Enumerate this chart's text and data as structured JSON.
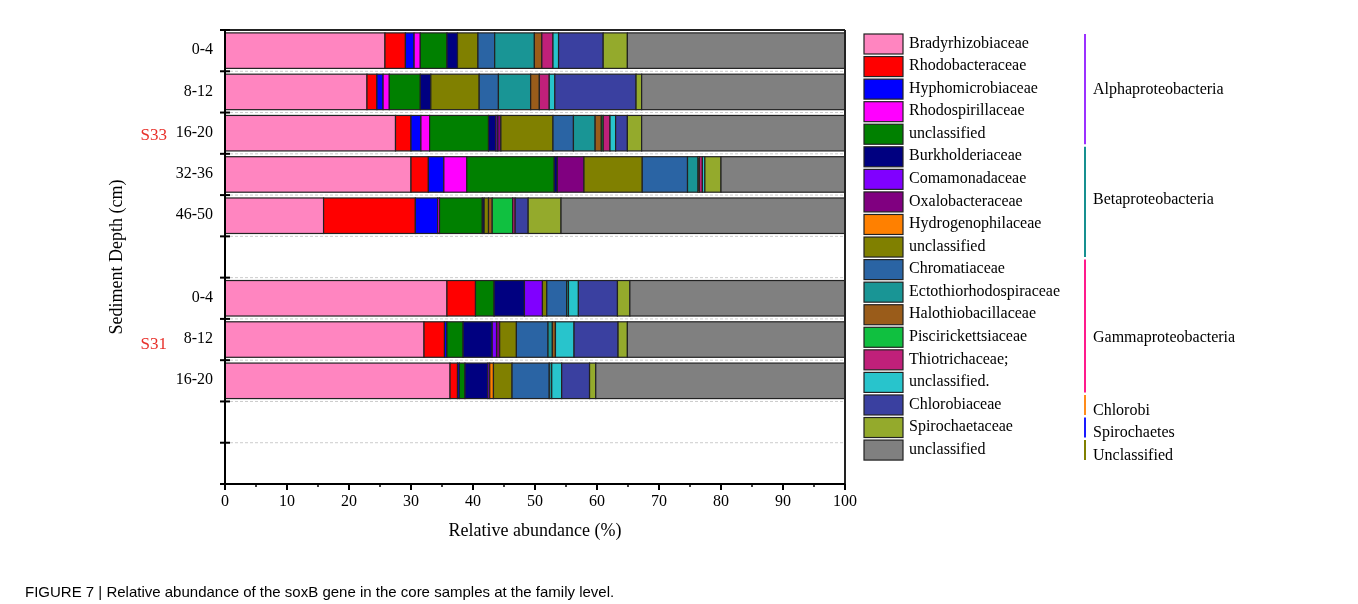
{
  "chart_data": {
    "type": "bar",
    "orientation": "horizontal",
    "stacked": true,
    "xlabel": "Relative abundance (%)",
    "ylabel": "Sediment Depth (cm)",
    "categories": [
      "0-4",
      "8-12",
      "16-20",
      "32-36",
      "46-50",
      null,
      "0-4",
      "8-12",
      "16-20",
      null,
      null
    ],
    "xlim": [
      0,
      100
    ],
    "xticks": [
      0,
      10,
      20,
      30,
      40,
      50,
      60,
      70,
      80,
      90,
      100
    ],
    "grid": "y",
    "legend": "right",
    "annotations": [
      "S33",
      "S31",
      "Alphaproteobacteria",
      "Betaproteobacteria",
      "Gammaproteobacteria",
      "Chlorobi",
      "Spirochaetes",
      "Unclassified",
      "FIGURE 7 | Relative abundance of the soxB gene in the core samples at the family level."
    ],
    "series": [
      {
        "name": "Bradyrhizobiaceae",
        "color": "#ff85c0",
        "values": [
          25.8,
          22.9,
          27.5,
          30.0,
          15.9,
          null,
          35.8,
          32.1,
          36.3,
          null,
          null
        ]
      },
      {
        "name": "Rhodobacteraceae",
        "color": "#ff0000",
        "values": [
          3.3,
          1.6,
          2.5,
          2.8,
          14.8,
          null,
          4.6,
          3.3,
          1.2,
          null,
          null
        ]
      },
      {
        "name": "Hyphomicrobiaceae",
        "color": "#0000ff",
        "values": [
          1.4,
          1.0,
          1.6,
          2.5,
          3.6,
          null,
          0,
          0.4,
          0.3,
          null,
          null
        ]
      },
      {
        "name": "Rhodospirillaceae",
        "color": "#ff00ff",
        "values": [
          1.0,
          1.0,
          1.4,
          3.7,
          0.3,
          null,
          0,
          0,
          0,
          null,
          null
        ]
      },
      {
        "name": "unclassified",
        "color": "#008000",
        "values": [
          4.3,
          5.0,
          9.5,
          14.1,
          6.9,
          null,
          3.0,
          2.6,
          0.9,
          null,
          null
        ]
      },
      {
        "name": "Burkholderiaceae",
        "color": "#000080",
        "values": [
          1.7,
          1.7,
          1.2,
          0.5,
          0.3,
          null,
          4.9,
          4.7,
          3.7,
          null,
          null
        ]
      },
      {
        "name": "Comamonadaceae",
        "color": "#8000ff",
        "values": [
          0,
          0,
          0.3,
          0,
          0,
          null,
          2.9,
          0.7,
          0.3,
          null,
          null
        ]
      },
      {
        "name": "Oxalobacteraceae",
        "color": "#800080",
        "values": [
          0,
          0,
          0.5,
          4.3,
          0,
          null,
          0,
          0.5,
          0,
          null,
          null
        ]
      },
      {
        "name": "Hydrogenophilaceae",
        "color": "#ff8000",
        "values": [
          0,
          0,
          0,
          0,
          0,
          null,
          0,
          0,
          0.6,
          null,
          null
        ]
      },
      {
        "name": "unclassified",
        "color": "#808000",
        "values": [
          3.3,
          7.8,
          8.4,
          9.4,
          0.7,
          null,
          0.7,
          2.7,
          3.0,
          null,
          null
        ]
      },
      {
        "name": "Chromatiaceae",
        "color": "#2a64a4",
        "values": [
          2.7,
          3.1,
          3.3,
          7.3,
          0,
          null,
          3.2,
          5.1,
          6.0,
          null,
          null
        ]
      },
      {
        "name": "Ectothiorhodospiraceae",
        "color": "#199595",
        "values": [
          6.4,
          5.2,
          3.5,
          1.7,
          0,
          null,
          0.3,
          0.7,
          0.4,
          null,
          null
        ]
      },
      {
        "name": "Halothiobacillaceae",
        "color": "#9a5c1a",
        "values": [
          1.2,
          1.4,
          1.0,
          0.2,
          0.6,
          null,
          0,
          0.5,
          0,
          null,
          null
        ]
      },
      {
        "name": "Piscirickettsiaceae",
        "color": "#10c040",
        "values": [
          0,
          0,
          0.3,
          0,
          3.3,
          null,
          0,
          0,
          0,
          null,
          null
        ]
      },
      {
        "name": "Thiotrichaceae;",
        "color": "#c0207a",
        "values": [
          1.8,
          1.6,
          1.1,
          0.5,
          0.4,
          null,
          0,
          0,
          0,
          null,
          null
        ]
      },
      {
        "name": "unclassified.",
        "color": "#28c4cc",
        "values": [
          0.9,
          0.9,
          0.9,
          0.4,
          0,
          null,
          1.6,
          3.0,
          1.6,
          null,
          null
        ]
      },
      {
        "name": "Chlorobiaceae",
        "color": "#3a40a0",
        "values": [
          7.2,
          13.1,
          1.9,
          0,
          2.1,
          null,
          6.3,
          7.1,
          4.5,
          null,
          null
        ]
      },
      {
        "name": "Spirochaetaceae",
        "color": "#94aa2c",
        "values": [
          3.9,
          0.9,
          2.3,
          2.6,
          5.3,
          null,
          2.0,
          1.5,
          1.0,
          null,
          null
        ]
      },
      {
        "name": "unclassified",
        "color": "#808080",
        "values": [
          35.1,
          32.8,
          32.8,
          20.0,
          45.8,
          null,
          34.7,
          35.1,
          40.2,
          null,
          null
        ]
      }
    ]
  }
}
